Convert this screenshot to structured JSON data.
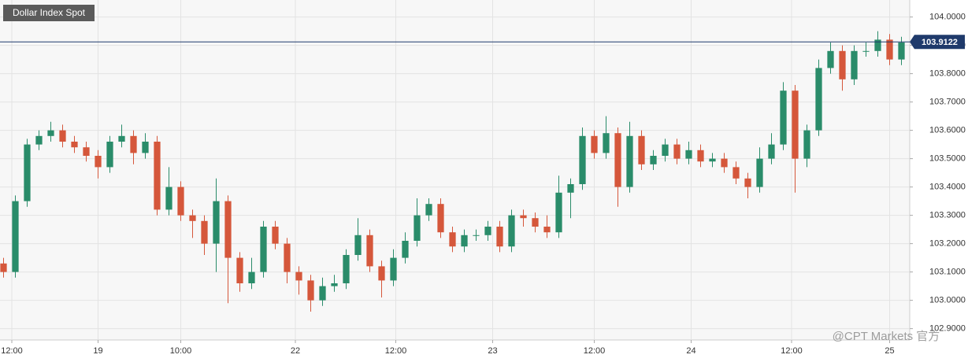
{
  "chart_data": {
    "type": "candlestick",
    "title": "Dollar Index Spot",
    "watermark": "@CPT Markets 官方",
    "up_color": "#2a8c6a",
    "down_color": "#d5573b",
    "grid": true,
    "last_price": {
      "value": 103.9122,
      "label": "103.9122"
    },
    "x": [
      0,
      1,
      2,
      3,
      4,
      5,
      6,
      7,
      8,
      9,
      10,
      11,
      12,
      13,
      14,
      15,
      16,
      17,
      18,
      19,
      20,
      21,
      22,
      23,
      24,
      25,
      26,
      27,
      28,
      29,
      30,
      31,
      32,
      33,
      34,
      35,
      36,
      37,
      38,
      39,
      40,
      41,
      42,
      43,
      44,
      45,
      46,
      47,
      48,
      49,
      50,
      51,
      52,
      53,
      54,
      55,
      56,
      57,
      58,
      59,
      60,
      61,
      62,
      63,
      64,
      65,
      66,
      67,
      68,
      69,
      70,
      71,
      72,
      73,
      74,
      75,
      76
    ],
    "open": [
      103.13,
      103.1,
      103.35,
      103.55,
      103.58,
      103.6,
      103.56,
      103.54,
      103.51,
      103.47,
      103.56,
      103.58,
      103.52,
      103.56,
      103.32,
      103.4,
      103.3,
      103.28,
      103.2,
      103.35,
      103.15,
      103.06,
      103.1,
      103.26,
      103.2,
      103.1,
      103.07,
      103.0,
      103.05,
      103.06,
      103.16,
      103.23,
      103.12,
      103.07,
      103.15,
      103.21,
      103.3,
      103.34,
      103.24,
      103.19,
      103.23,
      103.23,
      103.26,
      103.19,
      103.3,
      103.29,
      103.26,
      103.24,
      103.38,
      103.41,
      103.58,
      103.52,
      103.59,
      103.4,
      103.58,
      103.48,
      103.51,
      103.55,
      103.5,
      103.53,
      103.49,
      103.5,
      103.47,
      103.43,
      103.4,
      103.5,
      103.55,
      103.74,
      103.5,
      103.6,
      103.82,
      103.88,
      103.78,
      103.88,
      103.88,
      103.92,
      103.85
    ],
    "high": [
      103.15,
      103.37,
      103.57,
      103.6,
      103.63,
      103.62,
      103.58,
      103.56,
      103.53,
      103.58,
      103.62,
      103.6,
      103.59,
      103.58,
      103.47,
      103.42,
      103.32,
      103.3,
      103.43,
      103.37,
      103.17,
      103.15,
      103.28,
      103.28,
      103.22,
      103.12,
      103.09,
      103.08,
      103.09,
      103.18,
      103.29,
      103.25,
      103.14,
      103.18,
      103.24,
      103.36,
      103.36,
      103.36,
      103.26,
      103.25,
      103.25,
      103.28,
      103.28,
      103.32,
      103.32,
      103.31,
      103.3,
      103.44,
      103.43,
      103.61,
      103.6,
      103.65,
      103.61,
      103.63,
      103.6,
      103.53,
      103.57,
      103.57,
      103.56,
      103.55,
      103.52,
      103.52,
      103.49,
      103.45,
      103.54,
      103.59,
      103.77,
      103.76,
      103.62,
      103.85,
      103.91,
      103.9,
      103.9,
      103.91,
      103.95,
      103.94,
      103.93
    ],
    "low": [
      103.08,
      103.08,
      103.33,
      103.53,
      103.56,
      103.54,
      103.52,
      103.49,
      103.43,
      103.45,
      103.54,
      103.48,
      103.5,
      103.3,
      103.3,
      103.28,
      103.22,
      103.16,
      103.1,
      102.99,
      103.03,
      103.04,
      103.08,
      103.18,
      103.06,
      103.02,
      102.96,
      102.98,
      103.03,
      103.04,
      103.14,
      103.1,
      103.01,
      103.05,
      103.13,
      103.19,
      103.28,
      103.22,
      103.17,
      103.17,
      103.21,
      103.21,
      103.17,
      103.17,
      103.26,
      103.24,
      103.22,
      103.22,
      103.29,
      103.39,
      103.5,
      103.5,
      103.33,
      103.38,
      103.46,
      103.46,
      103.49,
      103.48,
      103.48,
      103.47,
      103.47,
      103.45,
      103.41,
      103.36,
      103.38,
      103.48,
      103.53,
      103.38,
      103.47,
      103.58,
      103.8,
      103.74,
      103.76,
      103.86,
      103.86,
      103.83,
      103.83
    ],
    "close": [
      103.1,
      103.35,
      103.55,
      103.58,
      103.6,
      103.56,
      103.54,
      103.51,
      103.47,
      103.56,
      103.58,
      103.52,
      103.56,
      103.32,
      103.4,
      103.3,
      103.28,
      103.2,
      103.35,
      103.15,
      103.06,
      103.1,
      103.26,
      103.2,
      103.1,
      103.07,
      103.0,
      103.05,
      103.06,
      103.16,
      103.23,
      103.12,
      103.07,
      103.15,
      103.21,
      103.3,
      103.34,
      103.24,
      103.19,
      103.23,
      103.23,
      103.26,
      103.19,
      103.3,
      103.29,
      103.26,
      103.24,
      103.38,
      103.41,
      103.58,
      103.52,
      103.59,
      103.4,
      103.58,
      103.48,
      103.51,
      103.55,
      103.5,
      103.53,
      103.49,
      103.5,
      103.47,
      103.43,
      103.4,
      103.5,
      103.55,
      103.74,
      103.5,
      103.6,
      103.82,
      103.88,
      103.78,
      103.88,
      103.88,
      103.92,
      103.85,
      103.91
    ],
    "xlim": [
      -0.3,
      76.7
    ],
    "xticks": [
      {
        "value": 0.7,
        "label": "12:00"
      },
      {
        "value": 8,
        "label": "19"
      },
      {
        "value": 15,
        "label": "10:00"
      },
      {
        "value": 24.7,
        "label": "22"
      },
      {
        "value": 33.2,
        "label": "12:00"
      },
      {
        "value": 41.4,
        "label": "23"
      },
      {
        "value": 50,
        "label": "12:00"
      },
      {
        "value": 58.2,
        "label": "24"
      },
      {
        "value": 66.7,
        "label": "12:00"
      },
      {
        "value": 75,
        "label": "25"
      }
    ],
    "ylim": [
      102.86,
      104.06
    ],
    "yticks": [
      {
        "value": 102.9,
        "label": "102.9000"
      },
      {
        "value": 103.0,
        "label": "103.0000"
      },
      {
        "value": 103.1,
        "label": "103.1000"
      },
      {
        "value": 103.2,
        "label": "103.2000"
      },
      {
        "value": 103.3,
        "label": "103.3000"
      },
      {
        "value": 103.4,
        "label": "103.4000"
      },
      {
        "value": 103.5,
        "label": "103.5000"
      },
      {
        "value": 103.6,
        "label": "103.6000"
      },
      {
        "value": 103.7,
        "label": "103.7000"
      },
      {
        "value": 103.8,
        "label": "103.8000"
      },
      {
        "value": 103.9,
        "label": "103.9000"
      },
      {
        "value": 104.0,
        "label": "104.0000"
      }
    ]
  }
}
